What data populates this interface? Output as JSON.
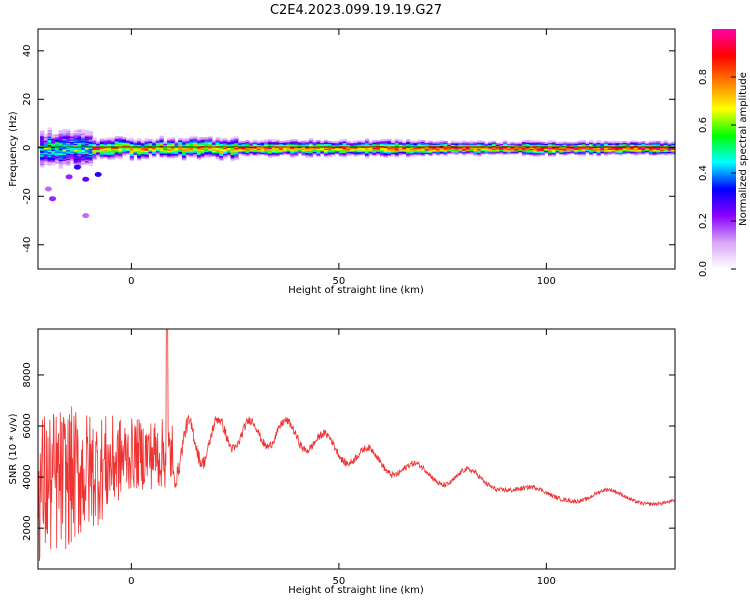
{
  "title": "C2E4.2023.099.19.19.G27",
  "chart_data": [
    {
      "type": "heatmap",
      "xlabel": "Height of straight line (km)",
      "ylabel": "Frequency (Hz)",
      "xlim": [
        -22.5,
        131
      ],
      "ylim": [
        -50,
        49
      ],
      "xticks": [
        0,
        50,
        100
      ],
      "xtick_labels": [
        "0",
        "50",
        "100"
      ],
      "yticks": [
        -40,
        -20,
        0,
        20,
        40
      ],
      "ytick_labels": [
        "-40",
        "-20",
        "0",
        "20",
        "40"
      ],
      "colorbar": {
        "label": "Normalized spectral amplitude",
        "range": [
          0,
          1
        ],
        "ticks": [
          0.0,
          0.2,
          0.4,
          0.6,
          0.8
        ],
        "tick_labels": [
          "0.0",
          "0.2",
          "0.4",
          "0.6",
          "0.8"
        ],
        "colormap": [
          "#ffffff",
          "#d7a6f5",
          "#8a00ff",
          "#0000ff",
          "#00ffff",
          "#00ff00",
          "#ffff00",
          "#ff7f00",
          "#ff0000",
          "#ff00aa"
        ]
      },
      "band": {
        "center_hz": 0,
        "segments": [
          {
            "x_start": -22,
            "x_end": -10,
            "halfwidth_hz": 6,
            "peak": 0.55
          },
          {
            "x_start": -10,
            "x_end": 25,
            "halfwidth_hz": 3,
            "peak": 0.8
          },
          {
            "x_start": 25,
            "x_end": 70,
            "halfwidth_hz": 2.5,
            "peak": 0.85
          },
          {
            "x_start": 70,
            "x_end": 131,
            "halfwidth_hz": 2,
            "peak": 0.95
          }
        ],
        "scatter": [
          {
            "x": -20,
            "y": -17,
            "v": 0.15
          },
          {
            "x": -19,
            "y": -21,
            "v": 0.2
          },
          {
            "x": -13,
            "y": -8,
            "v": 0.3
          },
          {
            "x": -11,
            "y": -13,
            "v": 0.25
          },
          {
            "x": -15,
            "y": -12,
            "v": 0.2
          },
          {
            "x": -11,
            "y": -28,
            "v": 0.15
          },
          {
            "x": -8,
            "y": -11,
            "v": 0.3
          }
        ]
      }
    },
    {
      "type": "line",
      "xlabel": "Height of straight line (km)",
      "ylabel": "SNR (10 * v/v)",
      "xlim": [
        -22.5,
        131
      ],
      "ylim": [
        400,
        9800
      ],
      "xticks": [
        0,
        50,
        100
      ],
      "xtick_labels": [
        "0",
        "50",
        "100"
      ],
      "yticks": [
        2000,
        4000,
        6000,
        8000
      ],
      "ytick_labels": [
        "2000",
        "4000",
        "6000",
        "8000"
      ],
      "series_color": "#ee3333",
      "envelope": {
        "x": [
          -22,
          -15,
          -8,
          0,
          8,
          15,
          20,
          25,
          30,
          35,
          40,
          45,
          50,
          55,
          60,
          65,
          70,
          75,
          80,
          85,
          90,
          95,
          100,
          105,
          110,
          115,
          120,
          125,
          130
        ],
        "mean": [
          3600,
          4000,
          4300,
          4900,
          4900,
          5200,
          5600,
          5700,
          5700,
          5700,
          5700,
          5300,
          5100,
          4800,
          4600,
          4400,
          4100,
          4000,
          4100,
          3700,
          3800,
          3400,
          3250,
          3350,
          3150,
          3300,
          3200,
          3150,
          3000
        ],
        "amplitude": [
          3000,
          2800,
          2200,
          1400,
          1400,
          1100,
          800,
          700,
          600,
          600,
          600,
          550,
          550,
          500,
          500,
          450,
          400,
          380,
          380,
          360,
          350,
          320,
          300,
          300,
          280,
          260,
          250,
          250,
          230
        ]
      },
      "spike": {
        "x": 8.6,
        "y": 9800
      }
    }
  ]
}
